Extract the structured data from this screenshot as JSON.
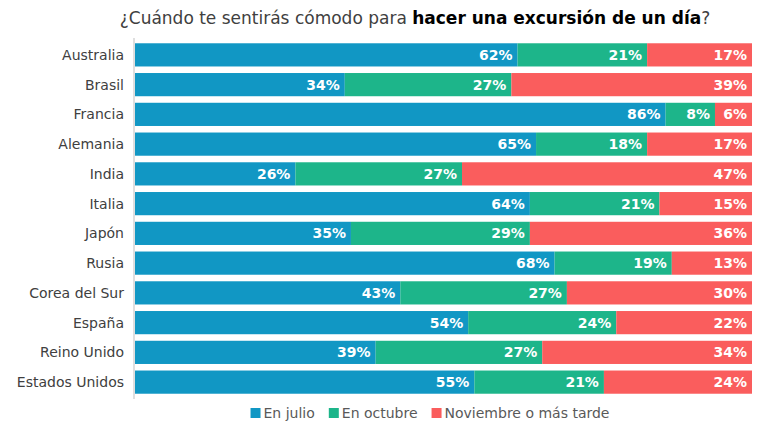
{
  "chart_data": {
    "type": "bar",
    "orientation": "horizontal",
    "stacked": true,
    "data_labels": true,
    "tick_labels": "y",
    "grid": false,
    "legend": "bottom",
    "title": [
      "¿Cuándo te sentirás cómodo para ",
      "hacer una excursión de un día",
      "?"
    ],
    "xlim": [
      0,
      100
    ],
    "categories": [
      "Australia",
      "Brasil",
      "Francia",
      "Alemania",
      "India",
      "Italia",
      "Japón",
      "Rusia",
      "Corea del Sur",
      "España",
      "Reino Unido",
      "Estados Unidos"
    ],
    "series": [
      {
        "name": "En julio",
        "color": "#1197c4",
        "values": [
          62,
          34,
          86,
          65,
          26,
          64,
          35,
          68,
          43,
          54,
          39,
          55
        ],
        "value_labels": [
          "62%",
          "34%",
          "86%",
          "65%",
          "26%",
          "64%",
          "35%",
          "68%",
          "43%",
          "54%",
          "39%",
          "55%"
        ]
      },
      {
        "name": "En octubre",
        "color": "#1db58a",
        "values": [
          21,
          27,
          8,
          18,
          27,
          21,
          29,
          19,
          27,
          24,
          27,
          21
        ],
        "value_labels": [
          "21%",
          "27%",
          "8%",
          "18%",
          "27%",
          "21%",
          "29%",
          "19%",
          "27%",
          "24%",
          "27%",
          "21%"
        ]
      },
      {
        "name": "Noviembre o más tarde",
        "color": "#fa5d5d",
        "values": [
          17,
          39,
          6,
          17,
          47,
          15,
          36,
          13,
          30,
          22,
          34,
          24
        ],
        "value_labels": [
          "17%",
          "39%",
          "6%",
          "17%",
          "47%",
          "15%",
          "36%",
          "13%",
          "30%",
          "22%",
          "34%",
          "24%"
        ]
      }
    ]
  }
}
